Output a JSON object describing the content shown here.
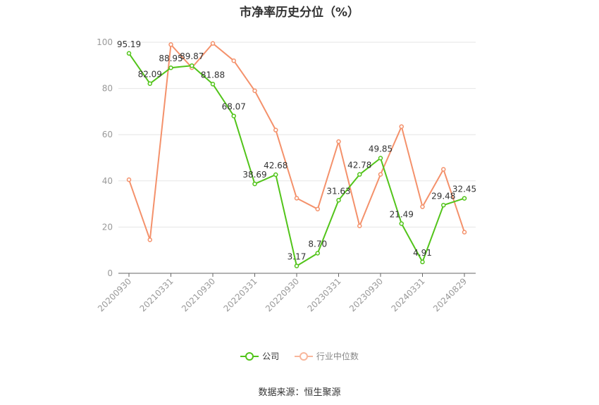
{
  "chart_data": {
    "type": "line",
    "title": "市净率历史分位（%）",
    "x_tick_labels": [
      "20200930",
      "20210331",
      "20210930",
      "20220331",
      "20220930",
      "20230331",
      "20230930",
      "20240331",
      "20240829"
    ],
    "x": [
      "20200930",
      "20201231",
      "20210331",
      "20210630",
      "20210930",
      "20211231",
      "20220331",
      "20220630",
      "20220930",
      "20221231",
      "20230331",
      "20230630",
      "20230930",
      "20231231",
      "20240331",
      "20240630",
      "20240829"
    ],
    "ylim": [
      0,
      100
    ],
    "y_ticks": [
      0,
      20,
      40,
      60,
      80,
      100
    ],
    "grid": true,
    "legend_position": "bottom",
    "series": [
      {
        "name": "公司",
        "color": "#52c41a",
        "values": [
          95.19,
          82.09,
          88.95,
          89.87,
          81.88,
          68.07,
          38.69,
          42.68,
          3.17,
          8.7,
          31.63,
          42.78,
          49.85,
          21.49,
          4.91,
          29.48,
          32.45
        ],
        "labels": [
          "95.19",
          "82.09",
          "88.95",
          "89.87",
          "81.88",
          "68.07",
          "38.69",
          "42.68",
          "3.17",
          "8.70",
          "31.63",
          "42.78",
          "49.85",
          "21.49",
          "4.91",
          "29.48",
          "32.45"
        ]
      },
      {
        "name": "行业中位数",
        "color": "#f4916b",
        "values": [
          40.5,
          14.5,
          99,
          89,
          99.5,
          92,
          79,
          62,
          32.5,
          27.8,
          57,
          20.5,
          42.8,
          63.5,
          28.8,
          45,
          17.8
        ]
      }
    ]
  },
  "source": "数据来源：恒生聚源"
}
